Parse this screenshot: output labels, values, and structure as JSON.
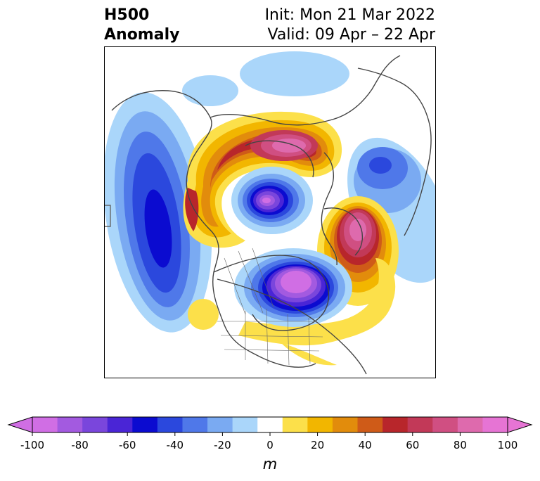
{
  "header": {
    "title_line1": "H500",
    "title_line2": "Anomaly",
    "init": "Init: Mon 21 Mar 2022",
    "valid": "Valid: 09 Apr – 22 Apr"
  },
  "colorbar": {
    "units": "m",
    "ticks": [
      "-100",
      "-80",
      "-60",
      "-40",
      "-20",
      "0",
      "20",
      "40",
      "60",
      "80",
      "100"
    ],
    "range": [
      -100,
      100
    ],
    "colors": [
      "#d06ee4",
      "#a35ae0",
      "#7a46dc",
      "#4a25d6",
      "#0b0bd0",
      "#2b48dd",
      "#4f78e9",
      "#7aaaf2",
      "#aad6fa",
      "#ffffff",
      "#fce04a",
      "#f2b600",
      "#e28c0c",
      "#cf5b18",
      "#b8262b",
      "#c23958",
      "#d04f82",
      "#de6aad",
      "#e674d4"
    ]
  },
  "map": {
    "projection": "north-polar-stereographic",
    "field": "500 hPa geopotential height anomaly"
  }
}
